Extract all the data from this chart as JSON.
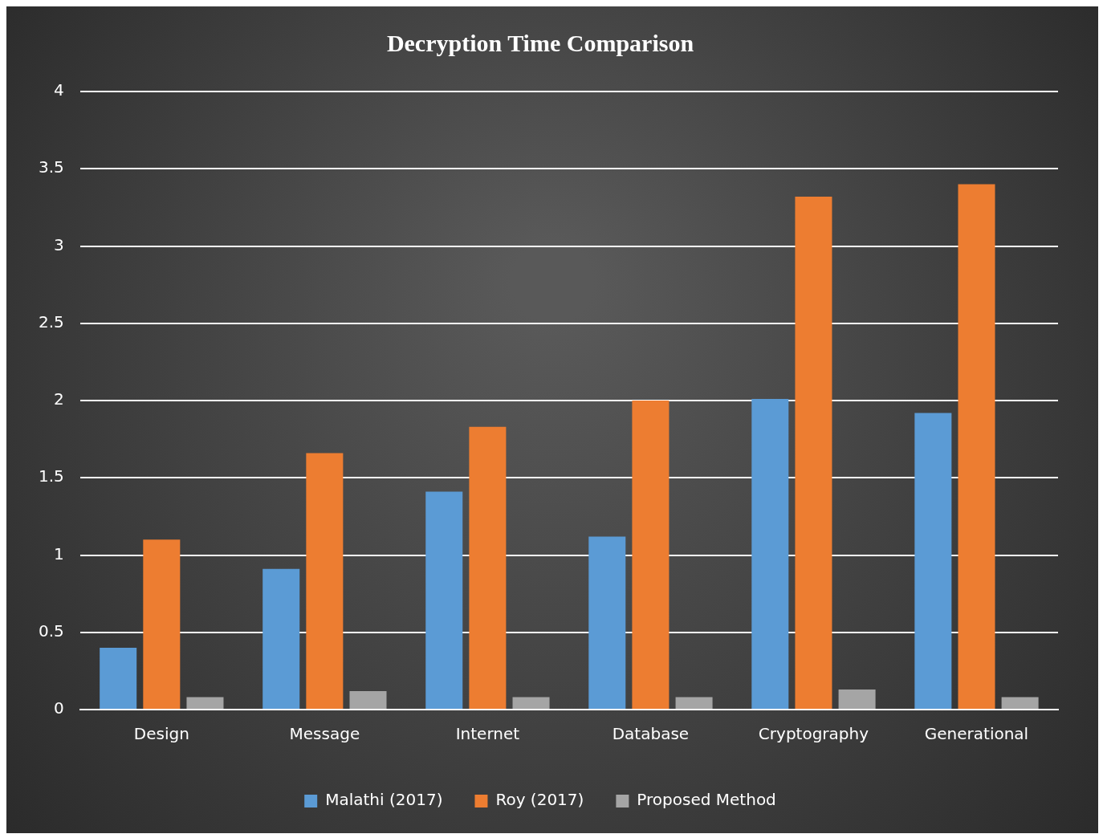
{
  "chart_data": {
    "type": "bar",
    "title": "Decryption Time Comparison",
    "categories": [
      "Design",
      "Message",
      "Internet",
      "Database",
      "Cryptography",
      "Generational"
    ],
    "series": [
      {
        "name": "Malathi (2017)",
        "color": "#5b9bd5",
        "values": [
          0.4,
          0.91,
          1.41,
          1.12,
          2.01,
          1.92
        ]
      },
      {
        "name": "Roy (2017)",
        "color": "#ed7d31",
        "values": [
          1.1,
          1.66,
          1.83,
          2.0,
          3.32,
          3.4
        ]
      },
      {
        "name": "Proposed Method",
        "color": "#a5a5a5",
        "values": [
          0.08,
          0.12,
          0.08,
          0.08,
          0.13,
          0.08
        ]
      }
    ],
    "ylim": [
      0,
      4
    ],
    "yticks": [
      0,
      0.5,
      1,
      1.5,
      2,
      2.5,
      3,
      3.5,
      4
    ],
    "grid": "y",
    "legend": "bottom"
  }
}
